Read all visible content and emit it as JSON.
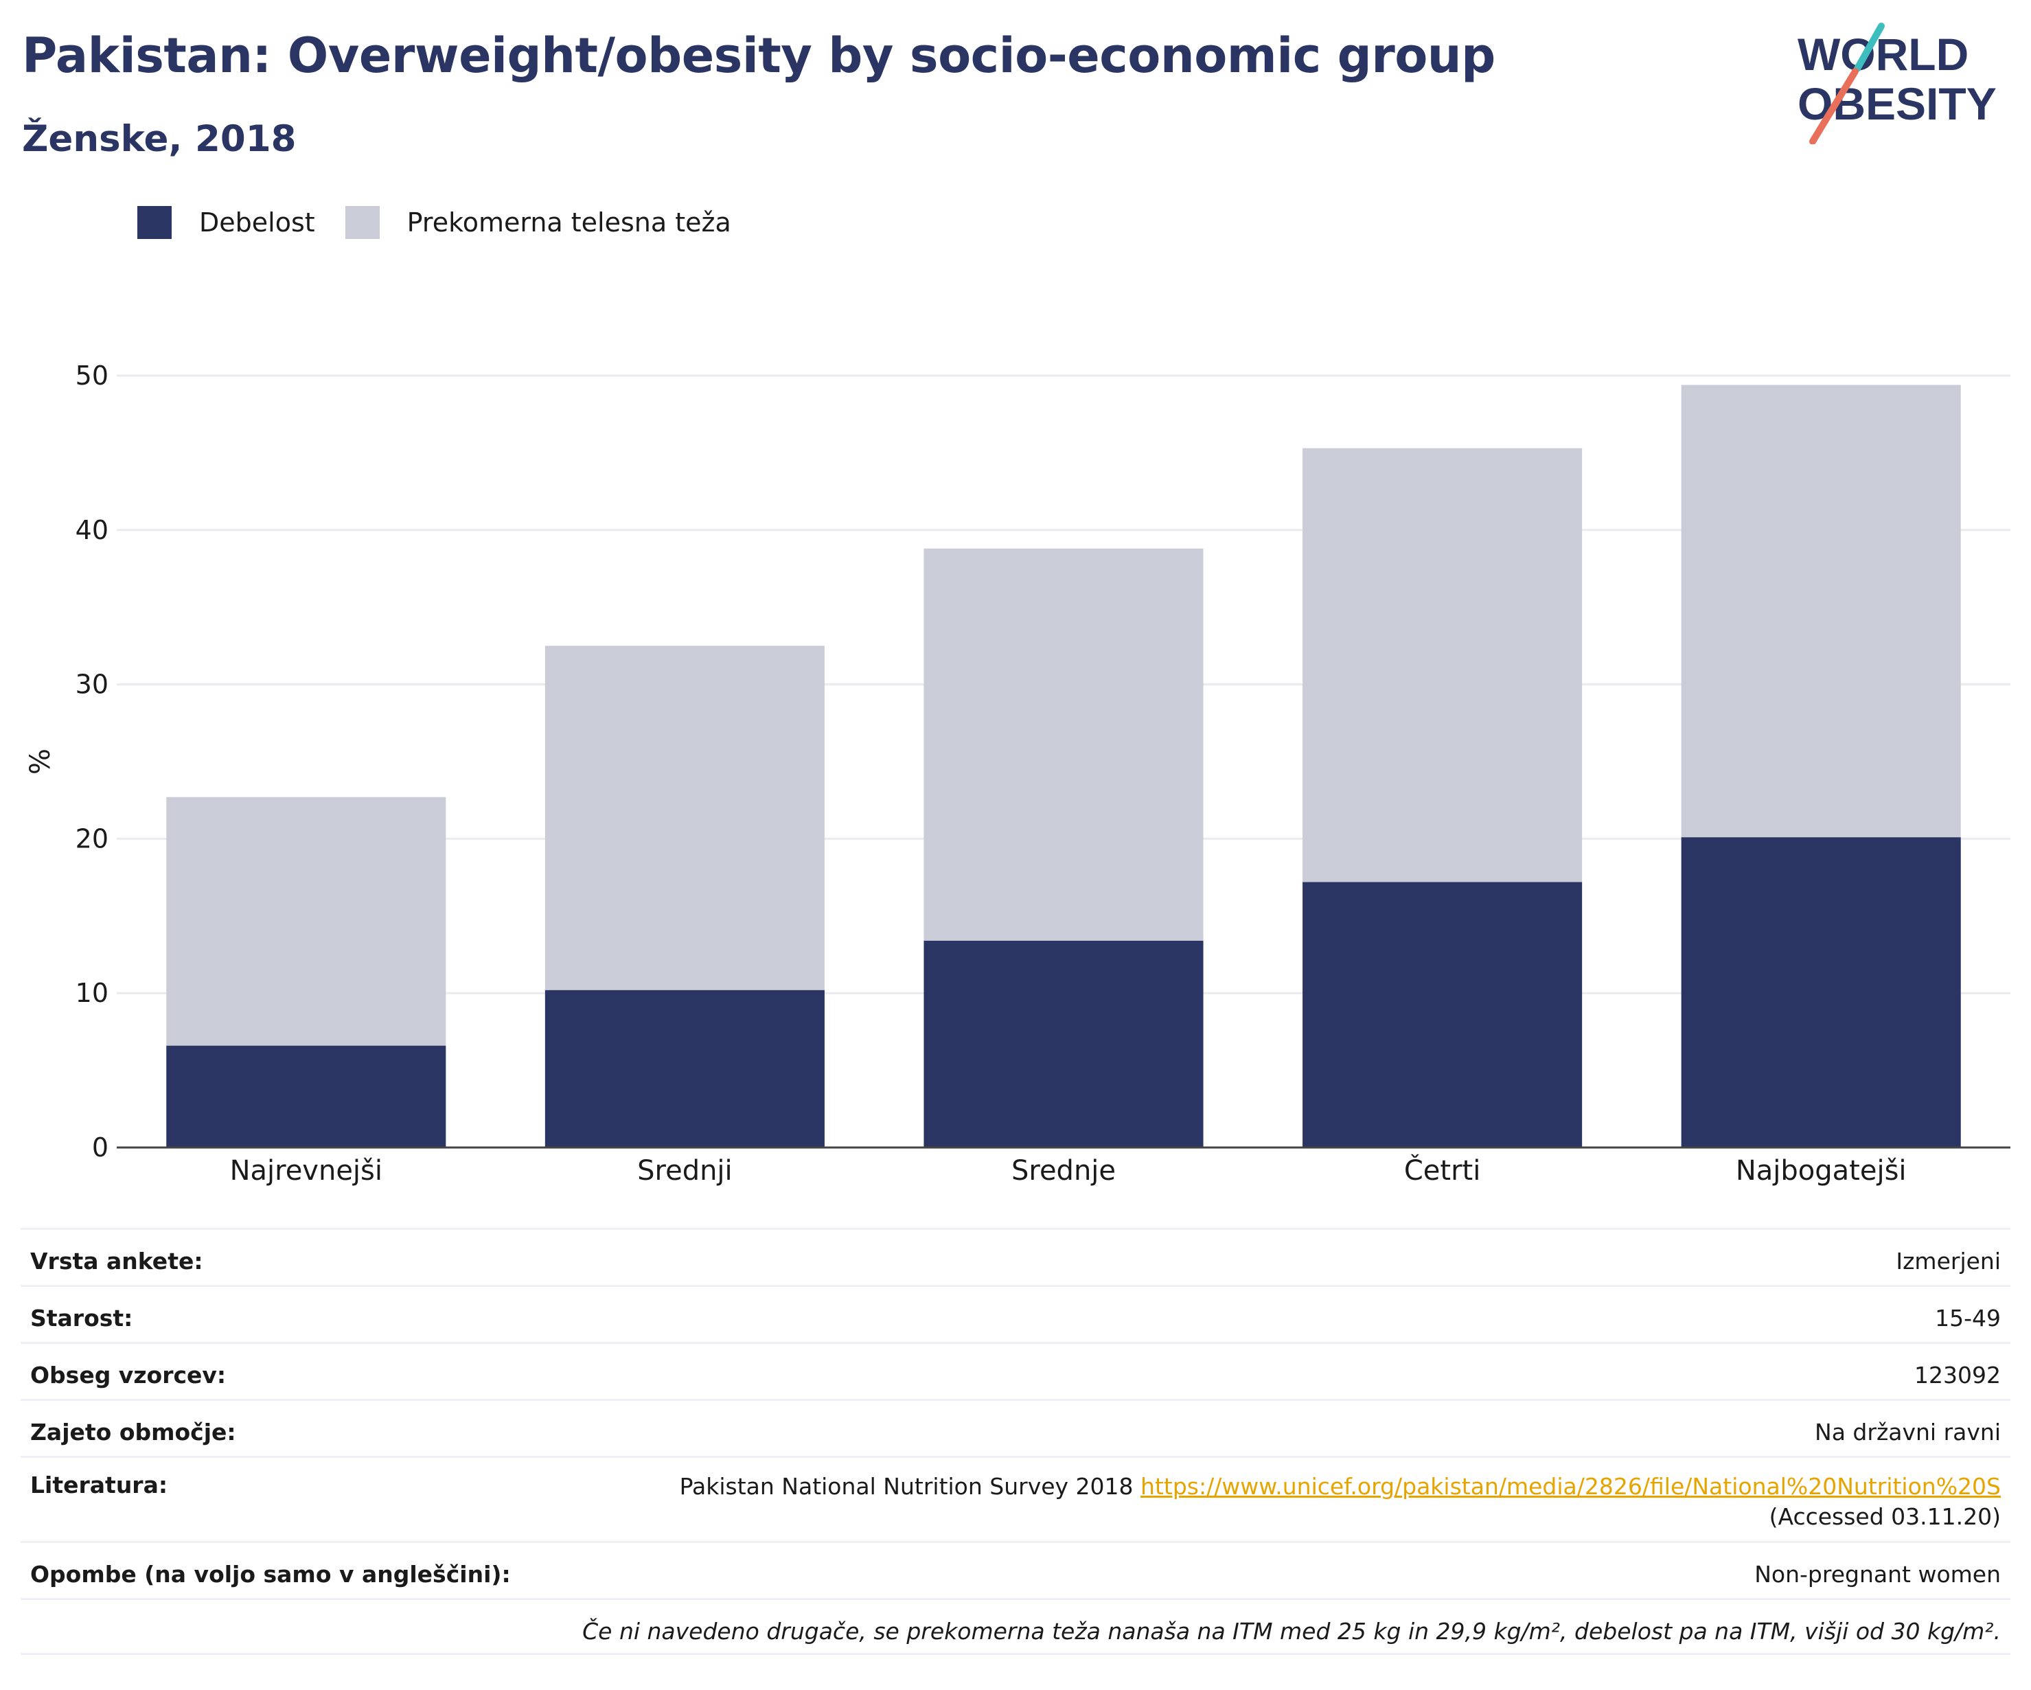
{
  "header": {
    "title": "Pakistan: Overweight/obesity by socio-economic group",
    "subtitle": "Ženske, 2018",
    "logo_line1": "WORLD",
    "logo_line2": "OBESITY"
  },
  "legend": {
    "items": [
      {
        "label": "Debelost",
        "color": "#2a3563"
      },
      {
        "label": "Prekomerna telesna teža",
        "color": "#cacdd8"
      }
    ]
  },
  "chart_data": {
    "type": "bar",
    "stacked": true,
    "categories": [
      "Najrevnejši",
      "Srednji",
      "Srednje",
      "Četrti",
      "Najbogatejši"
    ],
    "series": [
      {
        "name": "Debelost",
        "color": "#2a3563",
        "values": [
          6.6,
          10.2,
          13.4,
          17.2,
          20.1
        ]
      },
      {
        "name": "Prekomerna telesna teža",
        "color": "#cacdd8",
        "values": [
          16.1,
          22.3,
          25.4,
          28.1,
          29.3
        ]
      }
    ],
    "ylabel": "%",
    "xlabel": "",
    "ylim": [
      0,
      50
    ],
    "yticks": [
      0,
      10,
      20,
      30,
      40,
      50
    ],
    "grid": true,
    "legend_position": "top-left"
  },
  "info": {
    "survey_type": {
      "label": "Vrsta ankete:",
      "value": "Izmerjeni"
    },
    "age": {
      "label": "Starost:",
      "value": "15-49"
    },
    "sample_size": {
      "label": "Obseg vzorcev:",
      "value": "123092"
    },
    "area": {
      "label": "Zajeto območje:",
      "value": "Na državni ravni"
    },
    "literature": {
      "label": "Literatura:",
      "text": "Pakistan National Nutrition Survey 2018",
      "link": "https://www.unicef.org/pakistan/media/2826/file/National%20Nutrition%20S",
      "accessed": "(Accessed 03.11.20)"
    },
    "notes": {
      "label": "Opombe (na voljo samo v angleščini):",
      "value": "Non-pregnant women"
    },
    "footnote": "Če ni navedeno drugače, se prekomerna teža nanaša na ITM med 25 kg in 29,9 kg/m², debelost pa na ITM, višji od 30 kg/m²."
  }
}
